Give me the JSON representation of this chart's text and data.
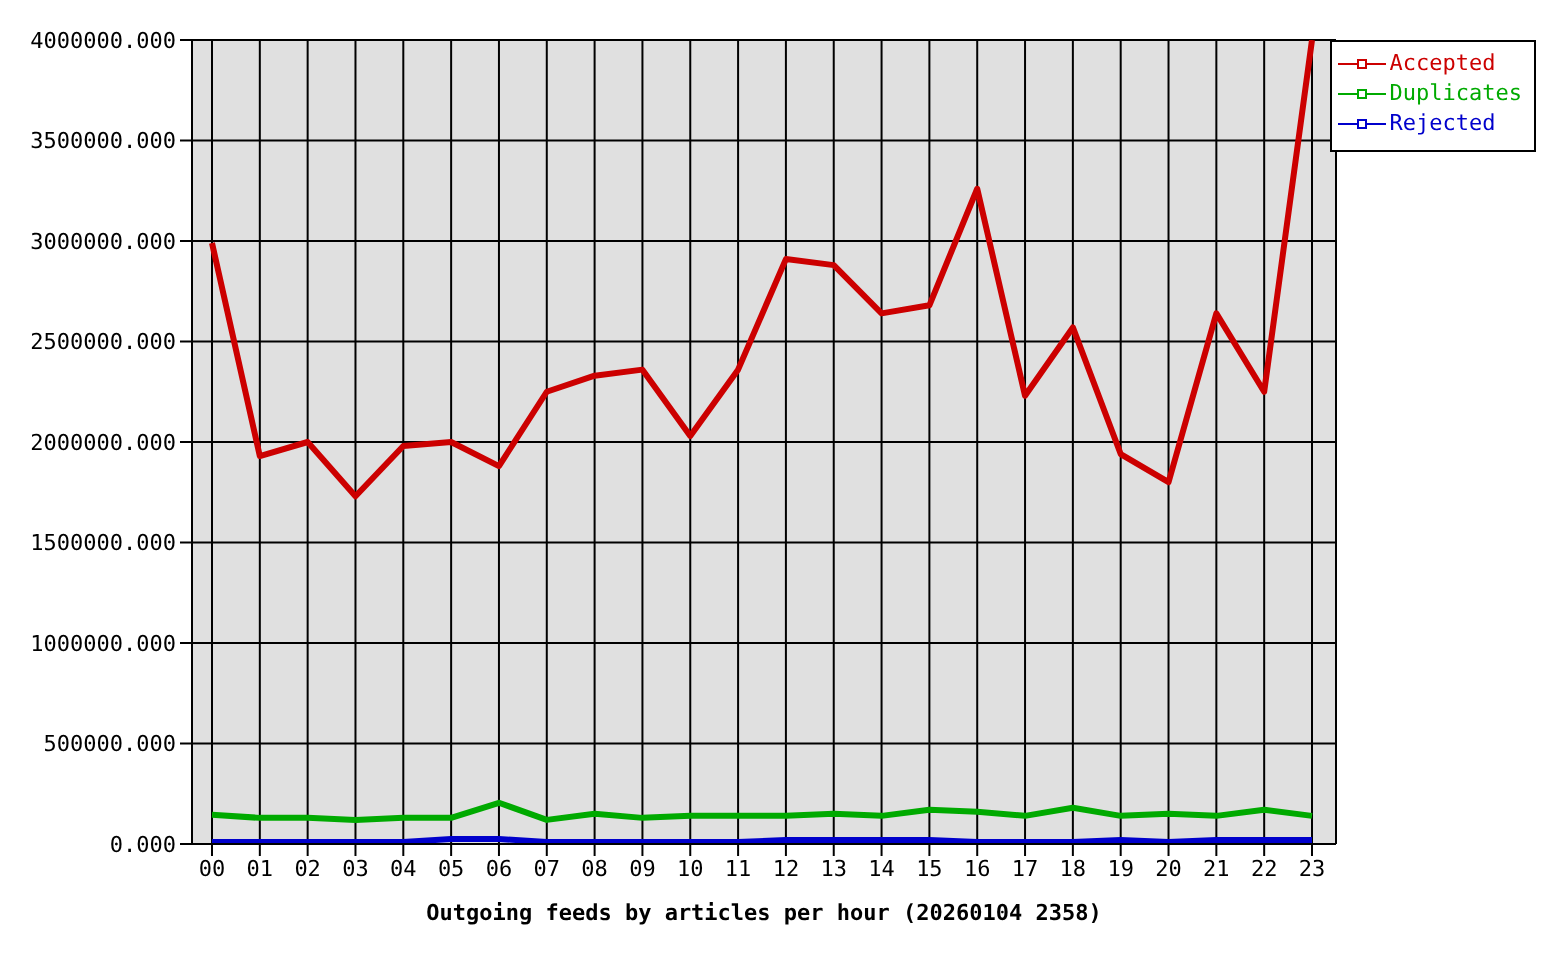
{
  "chart_data": {
    "type": "line",
    "xlabel": "Outgoing feeds by articles per hour (20260104 2358)",
    "categories": [
      "00",
      "01",
      "02",
      "03",
      "04",
      "05",
      "06",
      "07",
      "08",
      "09",
      "10",
      "11",
      "12",
      "13",
      "14",
      "15",
      "16",
      "17",
      "18",
      "19",
      "20",
      "21",
      "22",
      "23"
    ],
    "series": [
      {
        "name": "Accepted",
        "color": "#cc0000",
        "values": [
          2990000,
          1930000,
          2000000,
          1730000,
          1980000,
          2000000,
          1880000,
          2250000,
          2330000,
          2360000,
          2030000,
          2360000,
          2910000,
          2880000,
          2640000,
          2680000,
          3260000,
          2230000,
          2570000,
          1940000,
          1800000,
          2640000,
          2250000,
          4000000
        ]
      },
      {
        "name": "Duplicates",
        "color": "#00aa00",
        "values": [
          145000,
          130000,
          130000,
          120000,
          130000,
          130000,
          205000,
          120000,
          150000,
          130000,
          140000,
          140000,
          140000,
          150000,
          140000,
          170000,
          160000,
          140000,
          180000,
          140000,
          150000,
          140000,
          170000,
          140000
        ]
      },
      {
        "name": "Rejected",
        "color": "#0000cc",
        "values": [
          10000,
          10000,
          10000,
          10000,
          10000,
          25000,
          25000,
          10000,
          10000,
          10000,
          10000,
          10000,
          20000,
          20000,
          20000,
          20000,
          10000,
          10000,
          10000,
          20000,
          10000,
          20000,
          20000,
          20000
        ]
      }
    ],
    "ylim": [
      0,
      4000000
    ],
    "yticks": [
      {
        "value": 0,
        "label": "0.000"
      },
      {
        "value": 500000,
        "label": "500000.000"
      },
      {
        "value": 1000000,
        "label": "1000000.000"
      },
      {
        "value": 1500000,
        "label": "1500000.000"
      },
      {
        "value": 2000000,
        "label": "2000000.000"
      },
      {
        "value": 2500000,
        "label": "2500000.000"
      },
      {
        "value": 3000000,
        "label": "3000000.000"
      },
      {
        "value": 3500000,
        "label": "3500000.000"
      },
      {
        "value": 4000000,
        "label": "4000000.000"
      }
    ],
    "grid": true,
    "legend": "top right",
    "line_style": "solid"
  }
}
